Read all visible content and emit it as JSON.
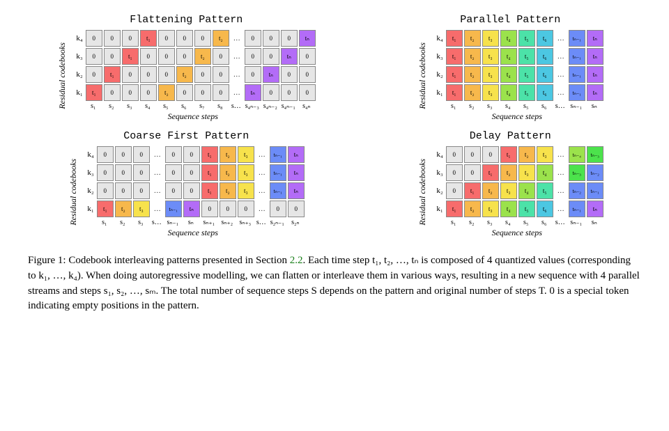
{
  "figure_number": "Figure 1:",
  "colors": {
    "zero": "#e6e6e6",
    "t1": "#f76c6c",
    "t2": "#f7b84c",
    "t3": "#f7e24c",
    "t4": "#9be24c",
    "t5": "#4ce2a8",
    "t6": "#4cc7e2",
    "tdots": "#ffffff",
    "tn_1": "#6c8cf7",
    "tn": "#b36cf7",
    "tn_2": "#6c8cf7",
    "tn_3": "#4ce24c",
    "tn_4": "#9be24c",
    "border": "#888888"
  },
  "ylabel": "Residual codebooks",
  "xlabel": "Sequence steps",
  "row_labels": [
    "k₄",
    "k₃",
    "k₂",
    "k₁"
  ],
  "panels": {
    "flatten": {
      "title": "Flattening Pattern",
      "xticks": [
        "s₁",
        "s₂",
        "s₃",
        "s₄",
        "s₅",
        "s₆",
        "s₇",
        "s₈",
        "s…",
        "s₄ₙ₋₃",
        "s₄ₙ₋₂",
        "s₄ₙ₋₁",
        "s₄ₙ"
      ],
      "rows": [
        [
          {
            "l": "0",
            "c": "zero"
          },
          {
            "l": "0",
            "c": "zero"
          },
          {
            "l": "0",
            "c": "zero"
          },
          {
            "l": "t₁",
            "c": "t1"
          },
          {
            "l": "0",
            "c": "zero"
          },
          {
            "l": "0",
            "c": "zero"
          },
          {
            "l": "0",
            "c": "zero"
          },
          {
            "l": "t₂",
            "c": "t2"
          },
          {
            "l": "…",
            "c": "tdots",
            "e": true
          },
          {
            "l": "0",
            "c": "zero"
          },
          {
            "l": "0",
            "c": "zero"
          },
          {
            "l": "0",
            "c": "zero"
          },
          {
            "l": "tₙ",
            "c": "tn"
          }
        ],
        [
          {
            "l": "0",
            "c": "zero"
          },
          {
            "l": "0",
            "c": "zero"
          },
          {
            "l": "t₁",
            "c": "t1"
          },
          {
            "l": "0",
            "c": "zero"
          },
          {
            "l": "0",
            "c": "zero"
          },
          {
            "l": "0",
            "c": "zero"
          },
          {
            "l": "t₂",
            "c": "t2"
          },
          {
            "l": "0",
            "c": "zero"
          },
          {
            "l": "…",
            "c": "tdots",
            "e": true
          },
          {
            "l": "0",
            "c": "zero"
          },
          {
            "l": "0",
            "c": "zero"
          },
          {
            "l": "tₙ",
            "c": "tn"
          },
          {
            "l": "0",
            "c": "zero"
          }
        ],
        [
          {
            "l": "0",
            "c": "zero"
          },
          {
            "l": "t₁",
            "c": "t1"
          },
          {
            "l": "0",
            "c": "zero"
          },
          {
            "l": "0",
            "c": "zero"
          },
          {
            "l": "0",
            "c": "zero"
          },
          {
            "l": "t₂",
            "c": "t2"
          },
          {
            "l": "0",
            "c": "zero"
          },
          {
            "l": "0",
            "c": "zero"
          },
          {
            "l": "…",
            "c": "tdots",
            "e": true
          },
          {
            "l": "0",
            "c": "zero"
          },
          {
            "l": "tₙ",
            "c": "tn"
          },
          {
            "l": "0",
            "c": "zero"
          },
          {
            "l": "0",
            "c": "zero"
          }
        ],
        [
          {
            "l": "t₁",
            "c": "t1"
          },
          {
            "l": "0",
            "c": "zero"
          },
          {
            "l": "0",
            "c": "zero"
          },
          {
            "l": "0",
            "c": "zero"
          },
          {
            "l": "t₂",
            "c": "t2"
          },
          {
            "l": "0",
            "c": "zero"
          },
          {
            "l": "0",
            "c": "zero"
          },
          {
            "l": "0",
            "c": "zero"
          },
          {
            "l": "…",
            "c": "tdots",
            "e": true
          },
          {
            "l": "tₙ",
            "c": "tn"
          },
          {
            "l": "0",
            "c": "zero"
          },
          {
            "l": "0",
            "c": "zero"
          },
          {
            "l": "0",
            "c": "zero"
          }
        ]
      ]
    },
    "parallel": {
      "title": "Parallel Pattern",
      "xticks": [
        "s₁",
        "s₂",
        "s₃",
        "s₄",
        "s₅",
        "s₆",
        "s…",
        "sₙ₋₁",
        "sₙ"
      ],
      "rows": [
        [
          {
            "l": "t₁",
            "c": "t1"
          },
          {
            "l": "t₂",
            "c": "t2"
          },
          {
            "l": "t₃",
            "c": "t3"
          },
          {
            "l": "t₄",
            "c": "t4"
          },
          {
            "l": "t₅",
            "c": "t5"
          },
          {
            "l": "t₆",
            "c": "t6"
          },
          {
            "l": "…",
            "c": "tdots",
            "e": true
          },
          {
            "l": "tₙ₋₁",
            "c": "tn_1"
          },
          {
            "l": "tₙ",
            "c": "tn"
          }
        ],
        [
          {
            "l": "t₁",
            "c": "t1"
          },
          {
            "l": "t₂",
            "c": "t2"
          },
          {
            "l": "t₃",
            "c": "t3"
          },
          {
            "l": "t₄",
            "c": "t4"
          },
          {
            "l": "t₅",
            "c": "t5"
          },
          {
            "l": "t₆",
            "c": "t6"
          },
          {
            "l": "…",
            "c": "tdots",
            "e": true
          },
          {
            "l": "tₙ₋₁",
            "c": "tn_1"
          },
          {
            "l": "tₙ",
            "c": "tn"
          }
        ],
        [
          {
            "l": "t₁",
            "c": "t1"
          },
          {
            "l": "t₂",
            "c": "t2"
          },
          {
            "l": "t₃",
            "c": "t3"
          },
          {
            "l": "t₄",
            "c": "t4"
          },
          {
            "l": "t₅",
            "c": "t5"
          },
          {
            "l": "t₆",
            "c": "t6"
          },
          {
            "l": "…",
            "c": "tdots",
            "e": true
          },
          {
            "l": "tₙ₋₁",
            "c": "tn_1"
          },
          {
            "l": "tₙ",
            "c": "tn"
          }
        ],
        [
          {
            "l": "t₁",
            "c": "t1"
          },
          {
            "l": "t₂",
            "c": "t2"
          },
          {
            "l": "t₃",
            "c": "t3"
          },
          {
            "l": "t₄",
            "c": "t4"
          },
          {
            "l": "t₅",
            "c": "t5"
          },
          {
            "l": "t₆",
            "c": "t6"
          },
          {
            "l": "…",
            "c": "tdots",
            "e": true
          },
          {
            "l": "tₙ₋₁",
            "c": "tn_1"
          },
          {
            "l": "tₙ",
            "c": "tn"
          }
        ]
      ]
    },
    "coarse": {
      "title": "Coarse First Pattern",
      "xticks": [
        "s₁",
        "s₂",
        "s₃",
        "s…",
        "sₙ₋₁",
        "sₙ",
        "sₙ₊₁",
        "sₙ₊₂",
        "sₙ₊₃",
        "s…",
        "s₂ₙ₋₁",
        "s₂ₙ"
      ],
      "rows": [
        [
          {
            "l": "0",
            "c": "zero"
          },
          {
            "l": "0",
            "c": "zero"
          },
          {
            "l": "0",
            "c": "zero"
          },
          {
            "l": "…",
            "c": "tdots",
            "e": true
          },
          {
            "l": "0",
            "c": "zero"
          },
          {
            "l": "0",
            "c": "zero"
          },
          {
            "l": "t₁",
            "c": "t1"
          },
          {
            "l": "t₂",
            "c": "t2"
          },
          {
            "l": "t₃",
            "c": "t3"
          },
          {
            "l": "…",
            "c": "tdots",
            "e": true
          },
          {
            "l": "tₙ₋₁",
            "c": "tn_1"
          },
          {
            "l": "tₙ",
            "c": "tn"
          }
        ],
        [
          {
            "l": "0",
            "c": "zero"
          },
          {
            "l": "0",
            "c": "zero"
          },
          {
            "l": "0",
            "c": "zero"
          },
          {
            "l": "…",
            "c": "tdots",
            "e": true
          },
          {
            "l": "0",
            "c": "zero"
          },
          {
            "l": "0",
            "c": "zero"
          },
          {
            "l": "t₁",
            "c": "t1"
          },
          {
            "l": "t₂",
            "c": "t2"
          },
          {
            "l": "t₃",
            "c": "t3"
          },
          {
            "l": "…",
            "c": "tdots",
            "e": true
          },
          {
            "l": "tₙ₋₁",
            "c": "tn_1"
          },
          {
            "l": "tₙ",
            "c": "tn"
          }
        ],
        [
          {
            "l": "0",
            "c": "zero"
          },
          {
            "l": "0",
            "c": "zero"
          },
          {
            "l": "0",
            "c": "zero"
          },
          {
            "l": "…",
            "c": "tdots",
            "e": true
          },
          {
            "l": "0",
            "c": "zero"
          },
          {
            "l": "0",
            "c": "zero"
          },
          {
            "l": "t₁",
            "c": "t1"
          },
          {
            "l": "t₂",
            "c": "t2"
          },
          {
            "l": "t₃",
            "c": "t3"
          },
          {
            "l": "…",
            "c": "tdots",
            "e": true
          },
          {
            "l": "tₙ₋₁",
            "c": "tn_1"
          },
          {
            "l": "tₙ",
            "c": "tn"
          }
        ],
        [
          {
            "l": "t₁",
            "c": "t1"
          },
          {
            "l": "t₂",
            "c": "t2"
          },
          {
            "l": "t₃",
            "c": "t3"
          },
          {
            "l": "…",
            "c": "tdots",
            "e": true
          },
          {
            "l": "tₙ₋₁",
            "c": "tn_1"
          },
          {
            "l": "tₙ",
            "c": "tn"
          },
          {
            "l": "0",
            "c": "zero"
          },
          {
            "l": "0",
            "c": "zero"
          },
          {
            "l": "0",
            "c": "zero"
          },
          {
            "l": "…",
            "c": "tdots",
            "e": true
          },
          {
            "l": "0",
            "c": "zero"
          },
          {
            "l": "0",
            "c": "zero"
          }
        ]
      ]
    },
    "delay": {
      "title": "Delay Pattern",
      "xticks": [
        "s₁",
        "s₂",
        "s₃",
        "s₄",
        "s₅",
        "s₆",
        "s…",
        "sₙ₋₁",
        "sₙ"
      ],
      "rows": [
        [
          {
            "l": "0",
            "c": "zero"
          },
          {
            "l": "0",
            "c": "zero"
          },
          {
            "l": "0",
            "c": "zero"
          },
          {
            "l": "t₁",
            "c": "t1"
          },
          {
            "l": "t₂",
            "c": "t2"
          },
          {
            "l": "t₃",
            "c": "t3"
          },
          {
            "l": "…",
            "c": "tdots",
            "e": true
          },
          {
            "l": "tₙ₋₄",
            "c": "tn_4"
          },
          {
            "l": "tₙ₋₃",
            "c": "tn_3"
          }
        ],
        [
          {
            "l": "0",
            "c": "zero"
          },
          {
            "l": "0",
            "c": "zero"
          },
          {
            "l": "t₁",
            "c": "t1"
          },
          {
            "l": "t₂",
            "c": "t2"
          },
          {
            "l": "t₃",
            "c": "t3"
          },
          {
            "l": "t₄",
            "c": "t4"
          },
          {
            "l": "…",
            "c": "tdots",
            "e": true
          },
          {
            "l": "tₙ₋₃",
            "c": "tn_3"
          },
          {
            "l": "tₙ₋₂",
            "c": "tn_2"
          }
        ],
        [
          {
            "l": "0",
            "c": "zero"
          },
          {
            "l": "t₁",
            "c": "t1"
          },
          {
            "l": "t₂",
            "c": "t2"
          },
          {
            "l": "t₃",
            "c": "t3"
          },
          {
            "l": "t₄",
            "c": "t4"
          },
          {
            "l": "t₅",
            "c": "t5"
          },
          {
            "l": "…",
            "c": "tdots",
            "e": true
          },
          {
            "l": "tₙ₋₂",
            "c": "tn_2"
          },
          {
            "l": "tₙ₋₁",
            "c": "tn_1"
          }
        ],
        [
          {
            "l": "t₁",
            "c": "t1"
          },
          {
            "l": "t₂",
            "c": "t2"
          },
          {
            "l": "t₃",
            "c": "t3"
          },
          {
            "l": "t₄",
            "c": "t4"
          },
          {
            "l": "t₅",
            "c": "t5"
          },
          {
            "l": "t₆",
            "c": "t6"
          },
          {
            "l": "…",
            "c": "tdots",
            "e": true
          },
          {
            "l": "tₙ₋₁",
            "c": "tn_1"
          },
          {
            "l": "tₙ",
            "c": "tn"
          }
        ]
      ]
    }
  },
  "caption_parts": {
    "p1": "Codebook interleaving patterns presented in Section ",
    "sec": "2.2",
    "p2": ". Each time step t₁, t₂, …, tₙ is composed of 4 quantized values (corresponding to k₁, …, k₄). When doing autoregressive modelling, we can flatten or interleave them in various ways, resulting in a new sequence with 4 parallel streams and steps s₁, s₂, …, sₘ. The total number of sequence steps S depends on the pattern and original number of steps T. 0 is a special token indicating empty positions in the pattern."
  }
}
